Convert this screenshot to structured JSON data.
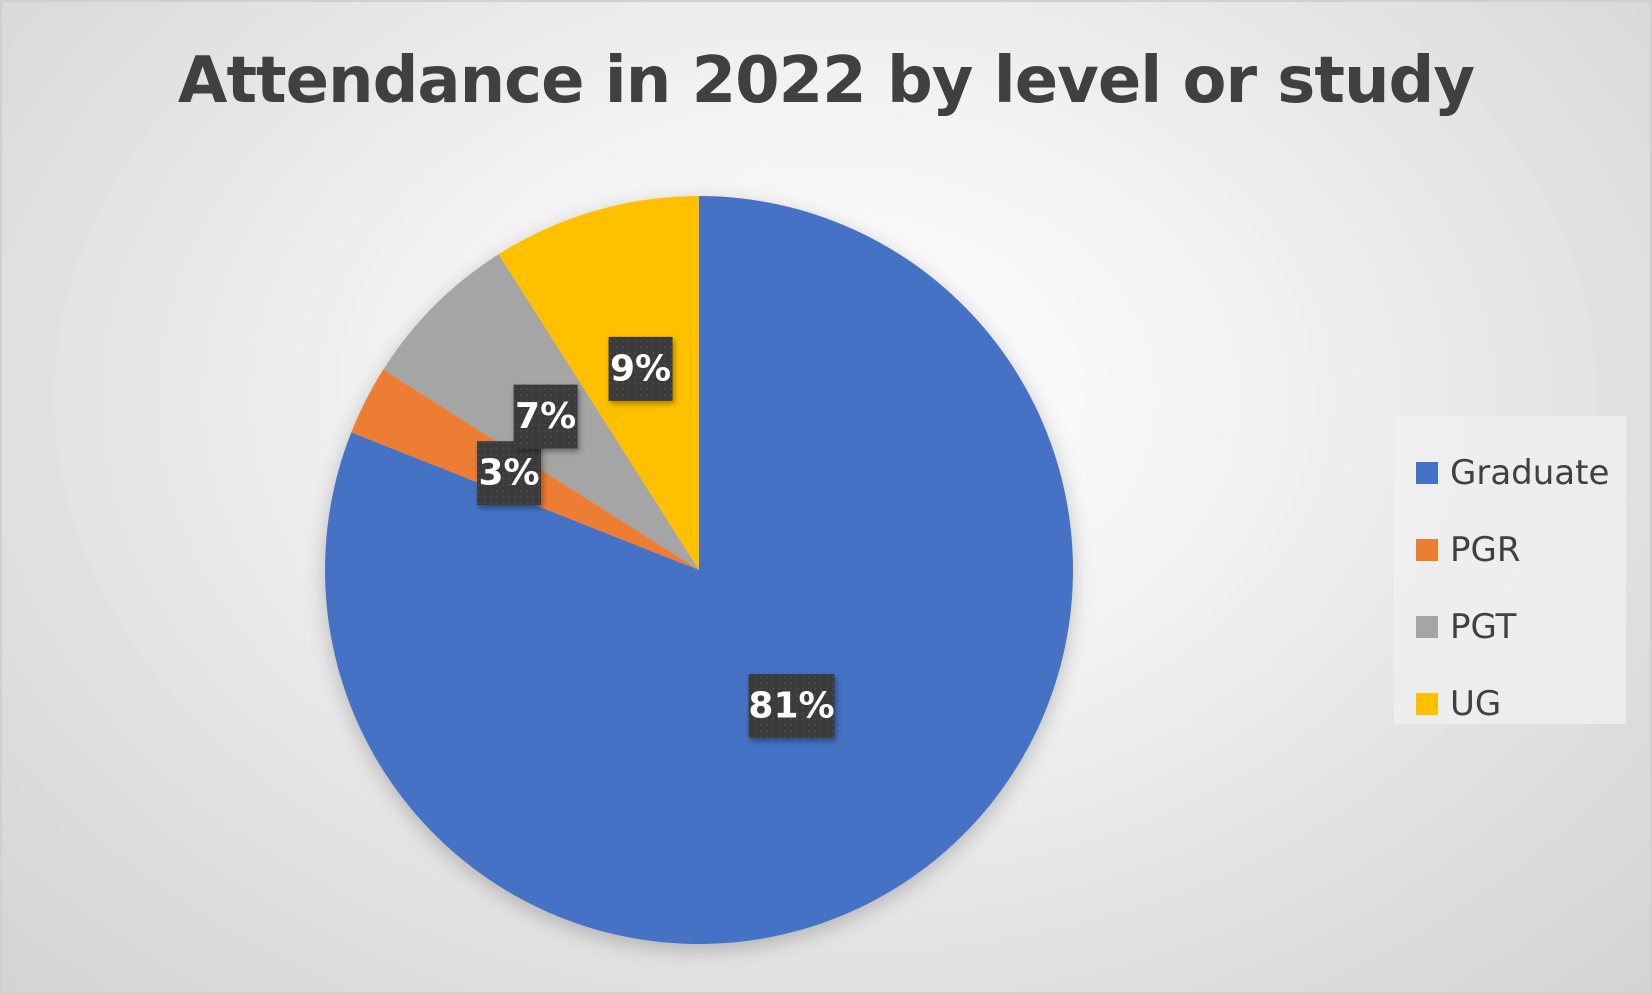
{
  "chart_data": {
    "type": "pie",
    "title": "Attendance in 2022 by level or study",
    "categories": [
      "Graduate",
      "PGR",
      "PGT",
      "UG"
    ],
    "values": [
      81,
      3,
      7,
      9
    ],
    "labels": [
      "81%",
      "3%",
      "7%",
      "9%"
    ],
    "colors": [
      "#4472C4",
      "#ED7D31",
      "#A5A5A5",
      "#FFC000"
    ],
    "legend_position": "right",
    "start_angle": "top",
    "direction": "clockwise"
  }
}
